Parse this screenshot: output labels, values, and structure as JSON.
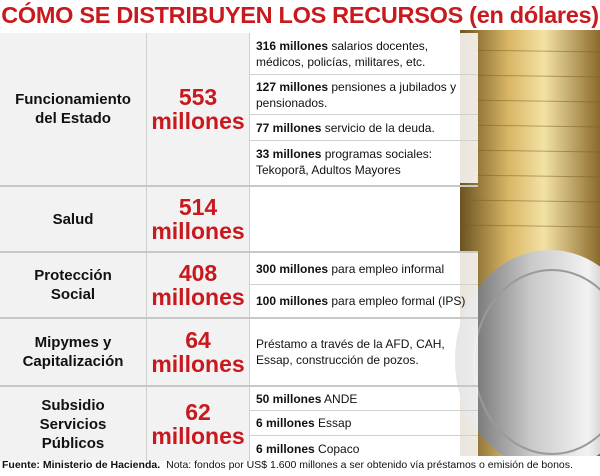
{
  "title": "CÓMO SE DISTRIBUYEN LOS RECURSOS (en dólares)",
  "rows": [
    {
      "category": "Funcionamiento\ndel Estado",
      "amount": "553\nmillones",
      "items": [
        {
          "bold": "316 millones",
          "text": " salarios docentes, médicos, policías, militares, etc."
        },
        {
          "bold": "127 millones",
          "text": " pensiones a jubilados y pensionados."
        },
        {
          "bold": "77 millones",
          "text": " servicio de la deuda."
        },
        {
          "bold": "33 millones",
          "text": " programas sociales: Tekoporã, Adultos Mayores"
        }
      ]
    },
    {
      "category": "Salud",
      "amount": "514\nmillones",
      "items": []
    },
    {
      "category": "Protección\nSocial",
      "amount": "408\nmillones",
      "items": [
        {
          "bold": "300 millones",
          "text": " para empleo informal"
        },
        {
          "bold": "100 millones",
          "text": " para empleo formal (IPS)"
        }
      ]
    },
    {
      "category": "Mipymes y\nCapitalización",
      "amount": "64\nmillones",
      "items": [
        {
          "bold": "",
          "text": "Préstamo a través de la AFD, CAH, Essap, construcción de pozos."
        }
      ]
    },
    {
      "category": "Subsidio\nServicios\nPúblicos",
      "amount": "62\nmillones",
      "items": [
        {
          "bold": "50 millones",
          "text": " ANDE"
        },
        {
          "bold": "6 millones",
          "text": " Essap"
        },
        {
          "bold": "6 millones",
          "text": " Copaco"
        }
      ]
    }
  ],
  "footer": {
    "source": "Fuente: Ministerio de Hacienda.",
    "note": "Nota: fondos por US$ 1.600 millones a ser obtenido vía préstamos o emisión de bonos."
  },
  "colors": {
    "accent": "#c8191f"
  },
  "decoration": "coin-stack-icon"
}
